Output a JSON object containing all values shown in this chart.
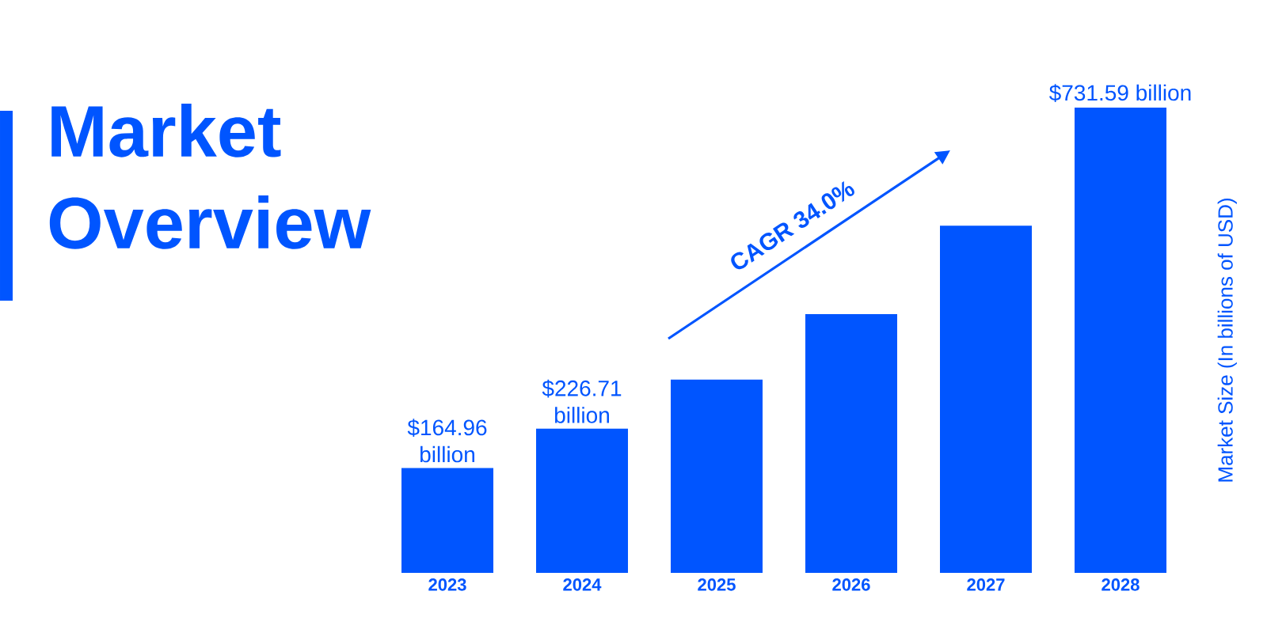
{
  "chart_data": {
    "type": "bar",
    "title": "Market Overview",
    "ylabel": "Market Size (In billions of USD)",
    "categories": [
      "2023",
      "2024",
      "2025",
      "2026",
      "2027",
      "2028"
    ],
    "values": [
      164.96,
      226.71,
      304,
      407,
      546,
      731.59
    ],
    "value_labels": [
      "$164.96 billion",
      "$226.71 billion",
      null,
      null,
      null,
      "$731.59 billion"
    ],
    "color": "#0055ff",
    "annotations": [
      "CAGR 34.0%"
    ]
  }
}
